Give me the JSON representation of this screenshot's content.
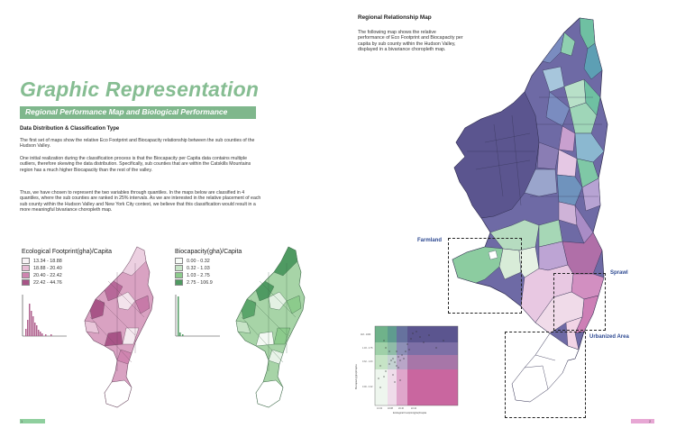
{
  "left_page": {
    "title": "Graphic Representation",
    "subtitle": "Regional Performance Map and Biological Performance",
    "section_heading": "Data Distribution & Classification Type",
    "paragraphs": [
      "The first set of maps show the relative Eco Footprint and Biocapacity relationship between the sub counties of the Hudson Valley.",
      "One initial realization during the classification process is that the Biocapacity per Capita data contains multiple outliers, therefore skewing the data distribution. Specifically, sub counties that are within the Catskills Mountains region has a much higher Biocapacity than the rest of the valley.",
      "Thus, we have chosen to represent the two variables through quantiles. In the maps below are classified in 4 quantiles, where the sub counties are ranked in 25% intervals. As we are interested in the relative placement of each sub county within the Hudson Valley and New York City context, we believe that this classification would result in a more meaningful bivariance choropleth map."
    ],
    "eco_legend": {
      "title": "Ecological Footprint(gha)/Capita",
      "items": [
        {
          "label": "13.34 - 18.88",
          "color": "#f7f2f5"
        },
        {
          "label": "18.88 - 20.40",
          "color": "#e7bdd5"
        },
        {
          "label": "20.40 - 22.42",
          "color": "#cf85b0"
        },
        {
          "label": "22.42 - 44.76",
          "color": "#a85487"
        }
      ]
    },
    "bio_legend": {
      "title": "Biocapacity(gha)/Capita",
      "items": [
        {
          "label": "0.00 - 0.32",
          "color": "#f6faf6"
        },
        {
          "label": "0.32 - 1.03",
          "color": "#c7e4c7"
        },
        {
          "label": "1.03 - 2.75",
          "color": "#8ccb8c"
        },
        {
          "label": "2.75 - 106.9",
          "color": "#4f9a62"
        }
      ]
    },
    "page_number": "1"
  },
  "right_page": {
    "title": "Regional Relationship Map",
    "description": "The following map shows the relative performance of Eco Footprint and Biocapacity per capita by sub county within the Hudson Valley, displayed in a bivariance choropleth map.",
    "callouts": {
      "farmland": "Farmland",
      "sprawl": "Sprawl",
      "urbanized": "Urbanized Area"
    },
    "scatter": {
      "ylabel": "Biocapacity(gha)/Capita",
      "xlabel": "Ecological Footprint(gha)/Capita"
    },
    "page_number": "2"
  },
  "colors": {
    "accent_green": "#7fb78c",
    "accent_pink": "#d88fc0",
    "callout_blue": "#2e4a92",
    "map_purple": "#5e5a92",
    "map_teal": "#5fa9a2"
  }
}
